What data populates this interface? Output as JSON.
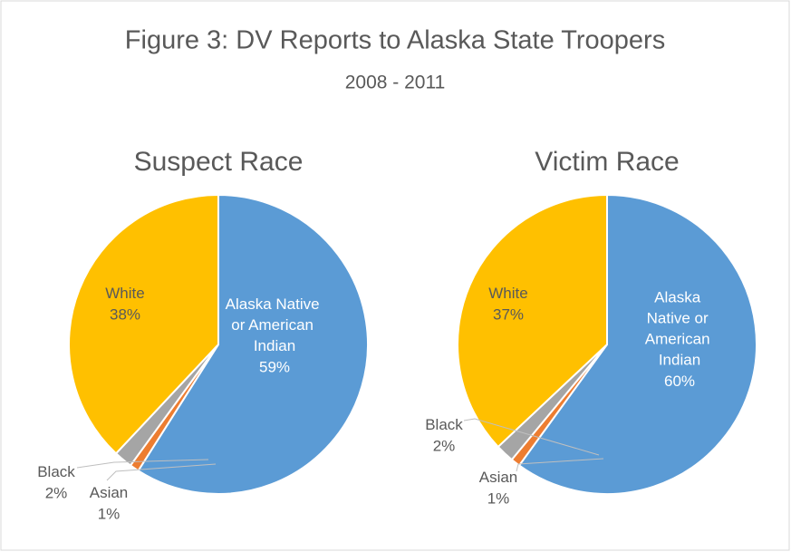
{
  "title": "Figure 3: DV Reports to Alaska State Troopers",
  "subtitle": "2008 - 2011",
  "chart_data": [
    {
      "type": "pie",
      "title": "Suspect Race",
      "categories": [
        "Alaska Native or American Indian",
        "Asian",
        "Black",
        "White"
      ],
      "values": [
        59,
        1,
        2,
        38
      ],
      "value_labels": [
        "59%",
        "1%",
        "2%",
        "38%"
      ],
      "colors": [
        "#5b9bd5",
        "#ed7d31",
        "#a5a5a5",
        "#ffc000"
      ]
    },
    {
      "type": "pie",
      "title": "Victim Race",
      "categories": [
        "Alaska Native or American Indian",
        "Asian",
        "Black",
        "White"
      ],
      "values": [
        60,
        1,
        2,
        37
      ],
      "value_labels": [
        "60%",
        "1%",
        "2%",
        "37%"
      ],
      "colors": [
        "#5b9bd5",
        "#ed7d31",
        "#a5a5a5",
        "#ffc000"
      ]
    }
  ]
}
